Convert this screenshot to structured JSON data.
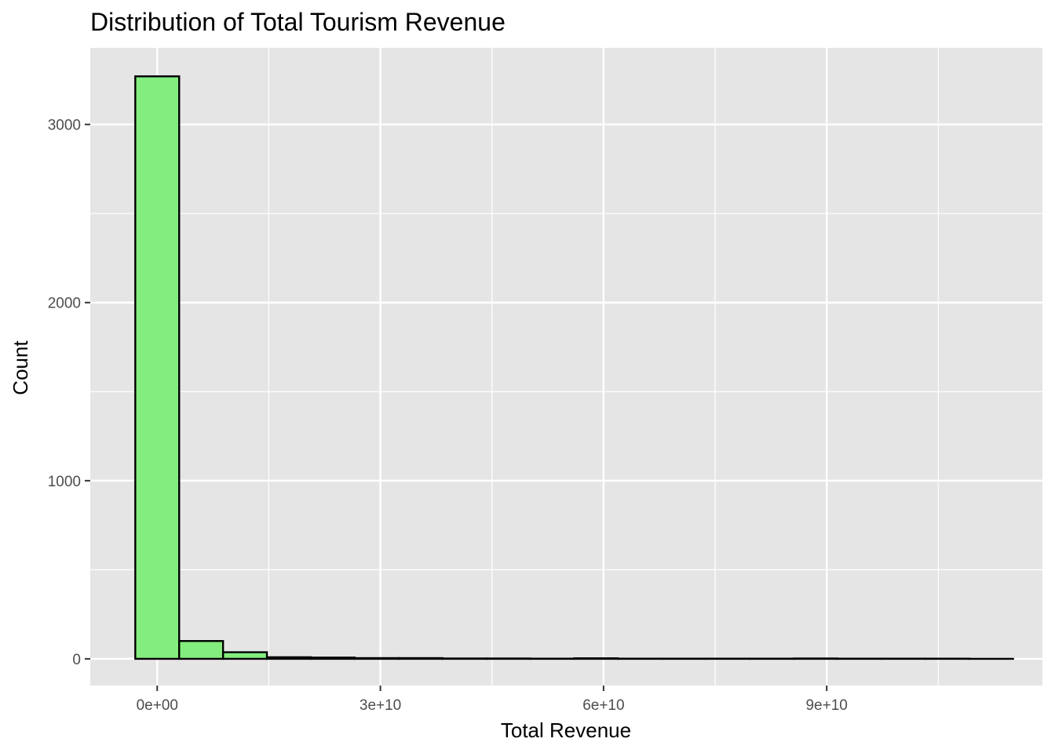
{
  "chart_data": {
    "type": "bar",
    "title": "Distribution of Total Tourism Revenue",
    "xlabel": "Total Revenue",
    "ylabel": "Count",
    "bin_width": 5900000000,
    "bins": [
      {
        "x0": -2950000000,
        "x1": 2950000000,
        "count": 3270
      },
      {
        "x0": 2950000000,
        "x1": 8850000000,
        "count": 100
      },
      {
        "x0": 8850000000,
        "x1": 14750000000,
        "count": 37
      },
      {
        "x0": 14750000000,
        "x1": 20650000000,
        "count": 9
      },
      {
        "x0": 20650000000,
        "x1": 26550000000,
        "count": 7
      },
      {
        "x0": 26550000000,
        "x1": 32450000000,
        "count": 4
      },
      {
        "x0": 32450000000,
        "x1": 38350000000,
        "count": 4
      },
      {
        "x0": 38350000000,
        "x1": 44250000000,
        "count": 2
      },
      {
        "x0": 44250000000,
        "x1": 50150000000,
        "count": 2
      },
      {
        "x0": 50150000000,
        "x1": 56050000000,
        "count": 1
      },
      {
        "x0": 56050000000,
        "x1": 61950000000,
        "count": 3
      },
      {
        "x0": 61950000000,
        "x1": 67850000000,
        "count": 1
      },
      {
        "x0": 67850000000,
        "x1": 73750000000,
        "count": 1
      },
      {
        "x0": 73750000000,
        "x1": 79650000000,
        "count": 1
      },
      {
        "x0": 79650000000,
        "x1": 85550000000,
        "count": 1
      },
      {
        "x0": 85550000000,
        "x1": 91450000000,
        "count": 2
      },
      {
        "x0": 91450000000,
        "x1": 97350000000,
        "count": 1
      },
      {
        "x0": 97350000000,
        "x1": 103250000000,
        "count": 1
      },
      {
        "x0": 103250000000,
        "x1": 109150000000,
        "count": 1
      },
      {
        "x0": 109150000000,
        "x1": 115050000000,
        "count": 0
      }
    ],
    "xlim": [
      -9000000000,
      119000000000
    ],
    "ylim": [
      -150,
      3430
    ],
    "x_ticks": [
      {
        "value": 0,
        "label": "0e+00"
      },
      {
        "value": 30000000000,
        "label": "3e+10"
      },
      {
        "value": 60000000000,
        "label": "6e+10"
      },
      {
        "value": 90000000000,
        "label": "9e+10"
      }
    ],
    "y_ticks": [
      {
        "value": 0,
        "label": "0"
      },
      {
        "value": 1000,
        "label": "1000"
      },
      {
        "value": 2000,
        "label": "2000"
      },
      {
        "value": 3000,
        "label": "3000"
      }
    ],
    "grid": true,
    "colors": {
      "panel": "#e5e5e5",
      "grid": "#ffffff",
      "bar_fill": "#83ee7d",
      "bar_stroke": "#000000",
      "tick": "#333333"
    }
  }
}
